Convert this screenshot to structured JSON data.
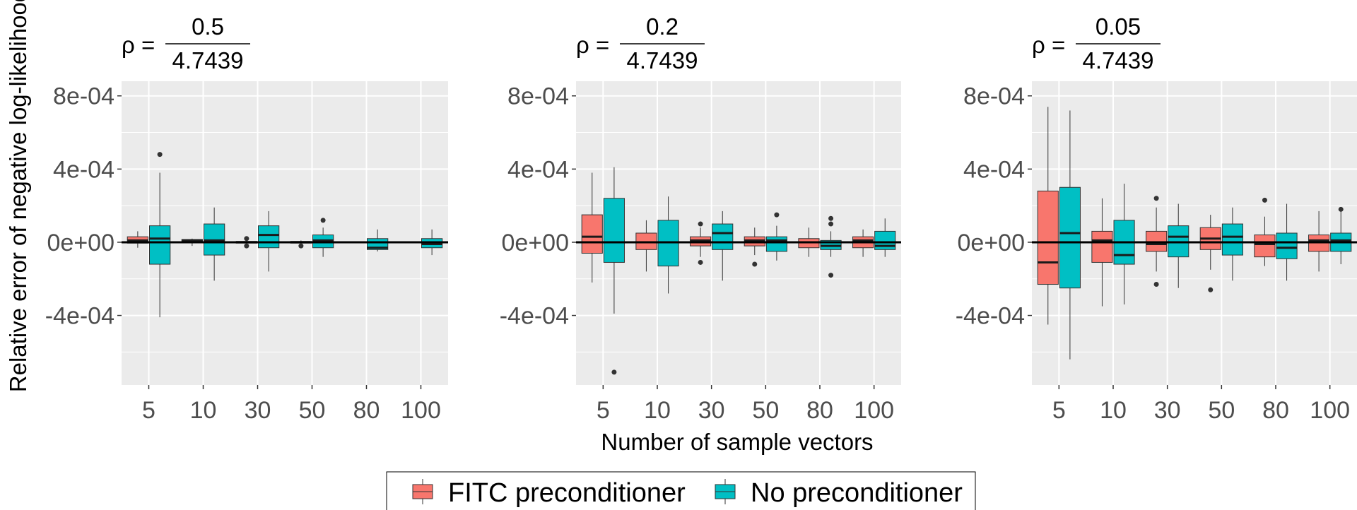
{
  "chart_data": [
    {
      "type": "box",
      "title": {
        "prefix": "ρ =",
        "numerator": "0.5",
        "denominator": "4.7439"
      },
      "ylabel": "Relative error of negative log-likelihood",
      "xlabel": "",
      "ylim": [
        -0.00078,
        0.00088
      ],
      "yticks": [
        -0.0004,
        0,
        0.0004,
        0.0008
      ],
      "ytick_labels": [
        "-4e-04",
        "0e+00",
        "4e-04",
        "8e-04"
      ],
      "categories": [
        "5",
        "10",
        "30",
        "50",
        "80",
        "100"
      ],
      "reference_line": 0,
      "series": [
        {
          "name": "FITC preconditioner",
          "boxes": [
            {
              "lower_whisker": -3e-05,
              "q1": -5e-06,
              "median": 1e-05,
              "q3": 3e-05,
              "upper_whisker": 6e-05,
              "outliers": []
            },
            {
              "lower_whisker": -2e-05,
              "q1": 5e-06,
              "median": 1e-05,
              "q3": 1.5e-05,
              "upper_whisker": 2e-05,
              "outliers": []
            },
            {
              "lower_whisker": -1e-05,
              "q1": -5e-06,
              "median": 0,
              "q3": 5e-06,
              "upper_whisker": 1e-05,
              "outliers": [
                2e-05,
                -2e-05
              ]
            },
            {
              "lower_whisker": -1e-05,
              "q1": -5e-06,
              "median": 0,
              "q3": 5e-06,
              "upper_whisker": 1e-05,
              "outliers": [
                -2e-05
              ]
            },
            {
              "lower_whisker": -5e-06,
              "q1": -3e-06,
              "median": 0,
              "q3": 3e-06,
              "upper_whisker": 5e-06,
              "outliers": []
            },
            {
              "lower_whisker": -5e-06,
              "q1": -3e-06,
              "median": 0,
              "q3": 3e-06,
              "upper_whisker": 5e-06,
              "outliers": []
            }
          ]
        },
        {
          "name": "No preconditioner",
          "boxes": [
            {
              "lower_whisker": -0.00041,
              "q1": -0.00012,
              "median": 2e-05,
              "q3": 9e-05,
              "upper_whisker": 0.00038,
              "outliers": [
                0.00048
              ]
            },
            {
              "lower_whisker": -0.00021,
              "q1": -7e-05,
              "median": 1e-05,
              "q3": 0.0001,
              "upper_whisker": 0.00019,
              "outliers": []
            },
            {
              "lower_whisker": -0.00016,
              "q1": -3e-05,
              "median": 4e-05,
              "q3": 9e-05,
              "upper_whisker": 0.00017,
              "outliers": []
            },
            {
              "lower_whisker": -8e-05,
              "q1": -3e-05,
              "median": 1e-05,
              "q3": 4e-05,
              "upper_whisker": 8e-05,
              "outliers": [
                0.00012
              ]
            },
            {
              "lower_whisker": -5e-05,
              "q1": -4e-05,
              "median": -3e-05,
              "q3": 2e-05,
              "upper_whisker": 7e-05,
              "outliers": []
            },
            {
              "lower_whisker": -7e-05,
              "q1": -3e-05,
              "median": -1e-05,
              "q3": 2e-05,
              "upper_whisker": 7e-05,
              "outliers": []
            }
          ]
        }
      ]
    },
    {
      "type": "box",
      "title": {
        "prefix": "ρ =",
        "numerator": "0.2",
        "denominator": "4.7439"
      },
      "ylabel": "",
      "xlabel": "Number of sample vectors",
      "ylim": [
        -0.00078,
        0.00088
      ],
      "yticks": [
        -0.0004,
        0,
        0.0004,
        0.0008
      ],
      "ytick_labels": [
        "-4e-04",
        "0e+00",
        "4e-04",
        "8e-04"
      ],
      "categories": [
        "5",
        "10",
        "30",
        "50",
        "80",
        "100"
      ],
      "reference_line": 0,
      "series": [
        {
          "name": "FITC preconditioner",
          "boxes": [
            {
              "lower_whisker": -0.00022,
              "q1": -6e-05,
              "median": 3e-05,
              "q3": 0.00015,
              "upper_whisker": 0.00038,
              "outliers": []
            },
            {
              "lower_whisker": -0.00016,
              "q1": -4e-05,
              "median": 0,
              "q3": 5e-05,
              "upper_whisker": 0.00012,
              "outliers": []
            },
            {
              "lower_whisker": -8e-05,
              "q1": -2e-05,
              "median": 1e-05,
              "q3": 3e-05,
              "upper_whisker": 8e-05,
              "outliers": [
                0.0001,
                -0.00011
              ]
            },
            {
              "lower_whisker": -7e-05,
              "q1": -2e-05,
              "median": 1e-05,
              "q3": 3e-05,
              "upper_whisker": 8e-05,
              "outliers": [
                -0.00012
              ]
            },
            {
              "lower_whisker": -8e-05,
              "q1": -3e-05,
              "median": 0,
              "q3": 2e-05,
              "upper_whisker": 8e-05,
              "outliers": []
            },
            {
              "lower_whisker": -8e-05,
              "q1": -3e-05,
              "median": 1e-05,
              "q3": 3e-05,
              "upper_whisker": 7e-05,
              "outliers": []
            }
          ]
        },
        {
          "name": "No preconditioner",
          "boxes": [
            {
              "lower_whisker": -0.00039,
              "q1": -0.00011,
              "median": 0,
              "q3": 0.00024,
              "upper_whisker": 0.00041,
              "outliers": [
                -0.00071
              ]
            },
            {
              "lower_whisker": -0.00028,
              "q1": -0.00013,
              "median": 0,
              "q3": 0.00012,
              "upper_whisker": 0.00025,
              "outliers": []
            },
            {
              "lower_whisker": -0.00021,
              "q1": -4e-05,
              "median": 5e-05,
              "q3": 0.0001,
              "upper_whisker": 0.00017,
              "outliers": []
            },
            {
              "lower_whisker": -0.0001,
              "q1": -5e-05,
              "median": 1e-05,
              "q3": 3e-05,
              "upper_whisker": 9e-05,
              "outliers": [
                0.00015
              ]
            },
            {
              "lower_whisker": -8e-05,
              "q1": -4e-05,
              "median": -2e-05,
              "q3": 1e-05,
              "upper_whisker": 6e-05,
              "outliers": [
                0.00013,
                0.0001,
                -0.00018
              ]
            },
            {
              "lower_whisker": -8e-05,
              "q1": -4e-05,
              "median": -2e-05,
              "q3": 6e-05,
              "upper_whisker": 0.00013,
              "outliers": []
            }
          ]
        }
      ]
    },
    {
      "type": "box",
      "title": {
        "prefix": "ρ =",
        "numerator": "0.05",
        "denominator": "4.7439"
      },
      "ylabel": "",
      "xlabel": "",
      "ylim": [
        -0.00078,
        0.00088
      ],
      "yticks": [
        -0.0004,
        0,
        0.0004,
        0.0008
      ],
      "ytick_labels": [
        "-4e-04",
        "0e+00",
        "4e-04",
        "8e-04"
      ],
      "categories": [
        "5",
        "10",
        "30",
        "50",
        "80",
        "100"
      ],
      "reference_line": 0,
      "series": [
        {
          "name": "FITC preconditioner",
          "boxes": [
            {
              "lower_whisker": -0.00045,
              "q1": -0.00023,
              "median": -0.00011,
              "q3": 0.00028,
              "upper_whisker": 0.00074,
              "outliers": []
            },
            {
              "lower_whisker": -0.00035,
              "q1": -0.00011,
              "median": 1e-05,
              "q3": 6e-05,
              "upper_whisker": 0.00024,
              "outliers": []
            },
            {
              "lower_whisker": -0.00016,
              "q1": -5e-05,
              "median": -1e-05,
              "q3": 6e-05,
              "upper_whisker": 0.00019,
              "outliers": [
                0.00024,
                -0.00023
              ]
            },
            {
              "lower_whisker": -0.00015,
              "q1": -4e-05,
              "median": 2e-05,
              "q3": 8e-05,
              "upper_whisker": 0.00015,
              "outliers": [
                -0.00026
              ]
            },
            {
              "lower_whisker": -0.00013,
              "q1": -8e-05,
              "median": -1e-05,
              "q3": 4e-05,
              "upper_whisker": 0.00014,
              "outliers": [
                0.00023
              ]
            },
            {
              "lower_whisker": -0.00016,
              "q1": -5e-05,
              "median": 1e-05,
              "q3": 4e-05,
              "upper_whisker": 0.00017,
              "outliers": []
            }
          ]
        },
        {
          "name": "No preconditioner",
          "boxes": [
            {
              "lower_whisker": -0.00064,
              "q1": -0.00025,
              "median": 5e-05,
              "q3": 0.0003,
              "upper_whisker": 0.00072,
              "outliers": []
            },
            {
              "lower_whisker": -0.00034,
              "q1": -0.00012,
              "median": -7e-05,
              "q3": 0.00012,
              "upper_whisker": 0.00032,
              "outliers": []
            },
            {
              "lower_whisker": -0.00025,
              "q1": -8e-05,
              "median": 3e-05,
              "q3": 9e-05,
              "upper_whisker": 0.00021,
              "outliers": []
            },
            {
              "lower_whisker": -0.00021,
              "q1": -7e-05,
              "median": 3e-05,
              "q3": 0.0001,
              "upper_whisker": 0.00019,
              "outliers": []
            },
            {
              "lower_whisker": -0.00021,
              "q1": -9e-05,
              "median": -3e-05,
              "q3": 5e-05,
              "upper_whisker": 0.00021,
              "outliers": []
            },
            {
              "lower_whisker": -0.00012,
              "q1": -5e-05,
              "median": 1e-05,
              "q3": 5e-05,
              "upper_whisker": 0.00017,
              "outliers": [
                0.00018
              ]
            }
          ]
        }
      ]
    }
  ],
  "legend": {
    "placement": "bottom",
    "items": [
      {
        "label": "FITC preconditioner",
        "color": "#F8766D"
      },
      {
        "label": "No preconditioner",
        "color": "#00BFC4"
      }
    ]
  },
  "colors": {
    "panel_background": "#EBEBEB",
    "grid": "#FFFFFF",
    "fitc": "#F8766D",
    "none": "#00BFC4",
    "outlier": "#333333"
  }
}
